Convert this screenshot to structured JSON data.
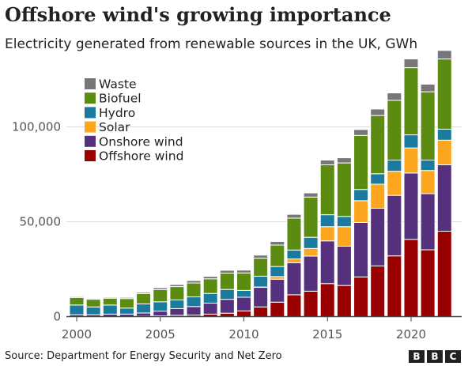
{
  "header": {
    "title": "Offshore wind's growing importance",
    "subtitle": "Electricity generated from renewable sources in the UK, GWh"
  },
  "footer": {
    "source": "Source: Department for Energy Security and Net Zero",
    "logo_letters": [
      "B",
      "B",
      "C"
    ]
  },
  "chart_data": {
    "type": "bar",
    "stacked": true,
    "categories": [
      2000,
      2001,
      2002,
      2003,
      2004,
      2005,
      2006,
      2007,
      2008,
      2009,
      2010,
      2011,
      2012,
      2013,
      2014,
      2015,
      2016,
      2017,
      2018,
      2019,
      2020,
      2021,
      2022
    ],
    "series": [
      {
        "name": "Offshore wind",
        "color": "#990000",
        "values": [
          0,
          0,
          0,
          0,
          200,
          400,
          700,
          800,
          1300,
          1800,
          3000,
          5100,
          7600,
          11500,
          13400,
          17400,
          16400,
          20900,
          26700,
          32000,
          40700,
          35200,
          45000
        ]
      },
      {
        "name": "Onshore wind",
        "color": "#55307d",
        "values": [
          1000,
          1000,
          1300,
          1300,
          1700,
          2500,
          3500,
          4500,
          5800,
          7300,
          7200,
          10300,
          12100,
          16900,
          18500,
          22500,
          20700,
          28700,
          30400,
          31900,
          35000,
          29600,
          35000
        ]
      },
      {
        "name": "Solar",
        "color": "#fba61e",
        "values": [
          0,
          0,
          0,
          0,
          0,
          0,
          0,
          0,
          0,
          0,
          0,
          200,
          1400,
          2000,
          4000,
          7500,
          10300,
          11500,
          12700,
          12700,
          13200,
          12200,
          13000
        ]
      },
      {
        "name": "Hydro",
        "color": "#1a7b9f",
        "values": [
          5100,
          4100,
          4800,
          3200,
          4800,
          4900,
          4600,
          5100,
          5100,
          5200,
          3600,
          5700,
          5300,
          4700,
          5900,
          6300,
          5400,
          5900,
          5500,
          5900,
          6900,
          5500,
          5800
        ]
      },
      {
        "name": "Biofuel",
        "color": "#5b8c11",
        "values": [
          4000,
          4000,
          3600,
          5000,
          5400,
          6400,
          7000,
          7300,
          7700,
          8600,
          9200,
          9500,
          11300,
          16800,
          21200,
          26300,
          28200,
          28500,
          30700,
          31500,
          35400,
          36000,
          37000
        ]
      },
      {
        "name": "Waste",
        "color": "#77777b",
        "values": [
          500,
          500,
          500,
          600,
          700,
          1000,
          1100,
          1300,
          1300,
          1500,
          1500,
          1600,
          1900,
          2000,
          2200,
          2500,
          2700,
          3100,
          3400,
          3900,
          4600,
          4000,
          4500
        ]
      }
    ],
    "legend_order": [
      "Waste",
      "Biofuel",
      "Hydro",
      "Solar",
      "Onshore wind",
      "Offshore wind"
    ],
    "legend_position": "top-left",
    "ylim": [
      0,
      135000
    ],
    "yticks": [
      0,
      50000,
      100000
    ],
    "ytick_labels": [
      "0",
      "50,000",
      "100,000"
    ],
    "xticks": [
      2000,
      2005,
      2010,
      2015,
      2020
    ],
    "xtick_labels": [
      "2000",
      "2005",
      "2010",
      "2015",
      "2020"
    ],
    "grid": true,
    "xlabel": "",
    "ylabel": ""
  }
}
